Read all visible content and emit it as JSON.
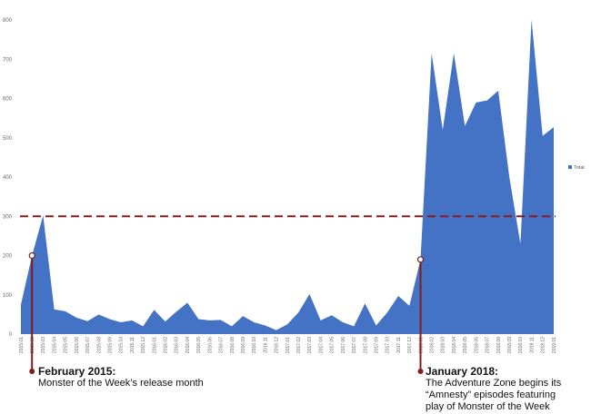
{
  "chart_data": {
    "type": "area",
    "title": "",
    "xlabel": "",
    "ylabel": "",
    "ylim": [
      0,
      800
    ],
    "yticks": [
      0,
      100,
      200,
      300,
      400,
      500,
      600,
      700,
      800
    ],
    "grid": false,
    "legend_position": "right",
    "colors": {
      "series": "#4472C4",
      "reference_line": "#8B1A1A",
      "annotation_marker": "#7B1F1F"
    },
    "categories": [
      "2015.01",
      "2015.02",
      "2015.03",
      "2015.04",
      "2015.05",
      "2015.06",
      "2015.07",
      "2015.08",
      "2015.09",
      "2015.10",
      "2015.11",
      "2015.12",
      "2016.01",
      "2016.02",
      "2016.03",
      "2016.04",
      "2016.05",
      "2016.06",
      "2016.07",
      "2016.08",
      "2016.09",
      "2016.10",
      "2016.11",
      "2016.12",
      "2017.01",
      "2017.02",
      "2017.03",
      "2017.04",
      "2017.05",
      "2017.06",
      "2017.07",
      "2017.08",
      "2017.09",
      "2017.10",
      "2017.11",
      "2017.12",
      "2018.01",
      "2018.02",
      "2018.03",
      "2018.04",
      "2018.05",
      "2018.06",
      "2018.07",
      "2018.08",
      "2018.09",
      "2018.10",
      "2018.11",
      "2018.12",
      "2019.01"
    ],
    "series": [
      {
        "name": "Total",
        "values": [
          75,
          200,
          302,
          63,
          58,
          42,
          33,
          50,
          38,
          30,
          35,
          20,
          62,
          32,
          57,
          80,
          38,
          35,
          36,
          20,
          46,
          30,
          22,
          10,
          25,
          55,
          102,
          35,
          48,
          30,
          20,
          78,
          22,
          55,
          97,
          72,
          190,
          715,
          520,
          715,
          530,
          590,
          595,
          620,
          400,
          230,
          800,
          505,
          527
        ]
      }
    ],
    "reference_line": {
      "y": 300,
      "style": "dashed"
    },
    "annotations": [
      {
        "category": "2015.02",
        "value": 200,
        "title": "February 2015:",
        "lines": [
          "Monster of the Week’s release month"
        ]
      },
      {
        "category": "2018.01",
        "value": 190,
        "title": "January 2018:",
        "lines": [
          "The Adventure Zone begins its",
          "“Amnesty” episodes featuring",
          "play of Monster of the Week"
        ]
      }
    ]
  }
}
